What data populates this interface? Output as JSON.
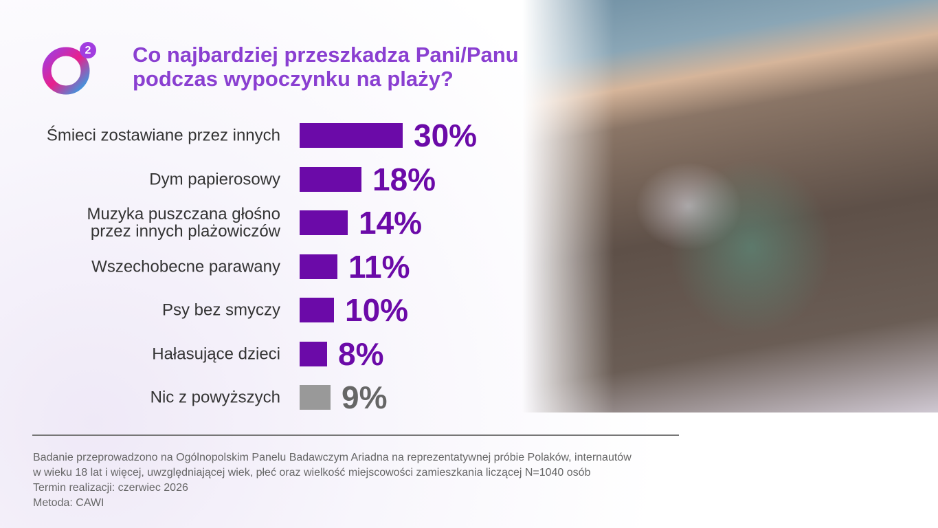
{
  "chart_data": {
    "type": "bar",
    "title": "Co najbardziej przeszkadza Pani/Panu\npodczas wypoczynku na plaży?",
    "logo_text": "2",
    "categories": [
      "Śmieci zostawiane przez innych",
      "Dym papierosowy",
      "Muzyka puszczana głośno\nprzez innych plażowiczów",
      "Wszechobecne parawany",
      "Psy bez smyczy",
      "Hałasujące dzieci",
      "Nic z powyższych"
    ],
    "values": [
      30,
      18,
      14,
      11,
      10,
      8,
      9
    ],
    "value_labels": [
      "30%",
      "18%",
      "14%",
      "11%",
      "10%",
      "8%",
      "9%"
    ],
    "colors": [
      "#6b0aa8",
      "#6b0aa8",
      "#6b0aa8",
      "#6b0aa8",
      "#6b0aa8",
      "#6b0aa8",
      "#999999"
    ],
    "notes": [
      "Badanie przeprowadzono na Ogólnopolskim Panelu Badawczym Ariadna na reprezentatywnej próbie Polaków, internautów",
      "w wieku 18 lat i więcej, uwzględniającej wiek, płeć oraz wielkość miejscowości zamieszkania liczącej N=1040 osób",
      "Termin realizacji: czerwiec 2026",
      "Metoda: CAWI"
    ]
  }
}
